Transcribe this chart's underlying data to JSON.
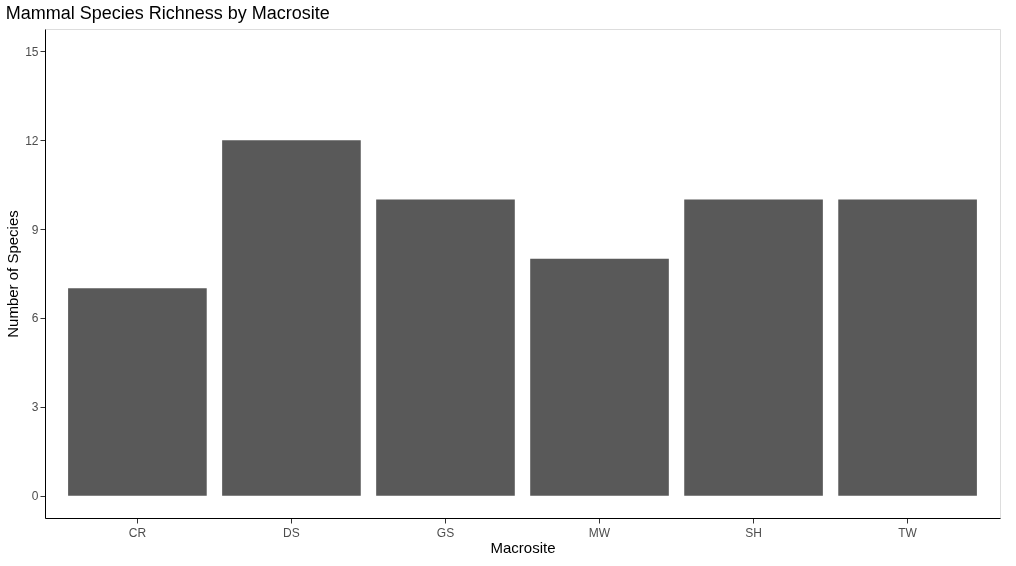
{
  "chart_data": {
    "type": "bar",
    "title": "Mammal Species Richness by Macrosite",
    "xlabel": "Macrosite",
    "ylabel": "Number of Species",
    "categories": [
      "CR",
      "DS",
      "GS",
      "MW",
      "SH",
      "TW"
    ],
    "values": [
      7,
      12,
      10,
      8,
      10,
      10
    ],
    "color": "#595959",
    "ylim": [
      -0.75,
      15.75
    ],
    "yticks": [
      0,
      3,
      6,
      9,
      12,
      15
    ]
  }
}
